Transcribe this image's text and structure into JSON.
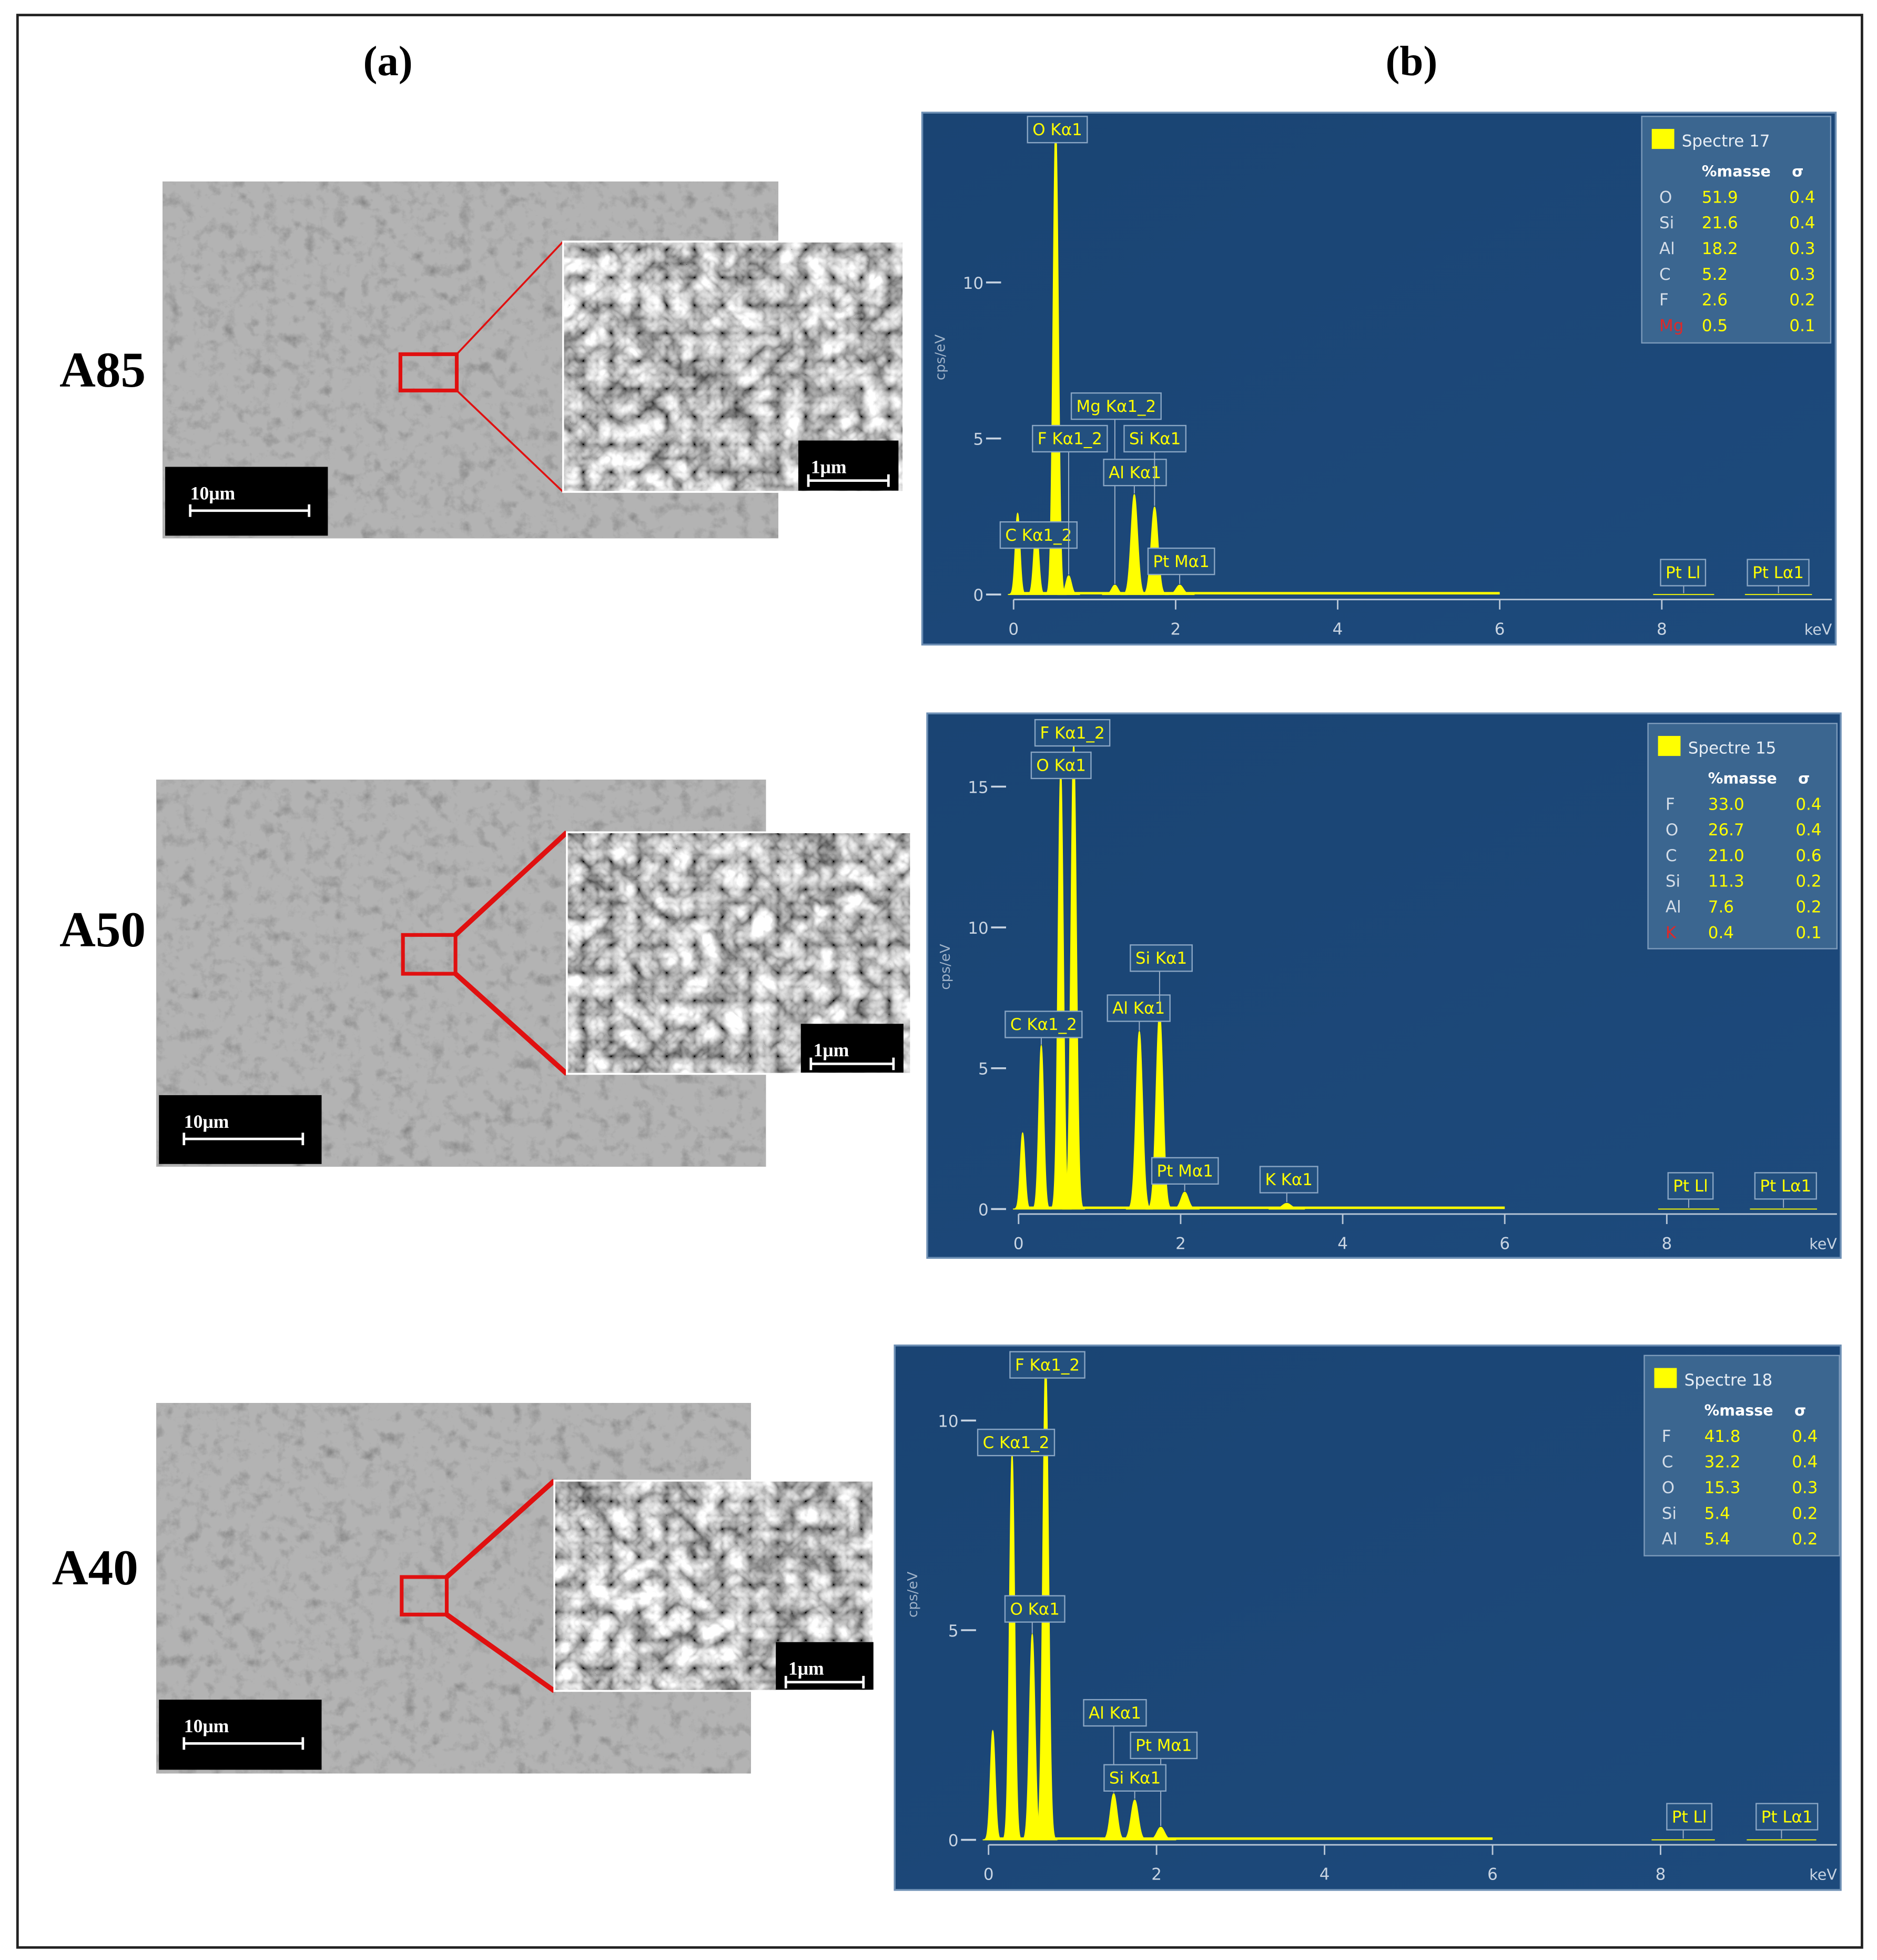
{
  "figure": {
    "panel_labels": [
      "(a)",
      "(b)"
    ],
    "rows": [
      {
        "sample": "A85",
        "scale_bar": "10μm",
        "inset_scale_bar": "1μm",
        "spectrum": {
          "type": "spectrum",
          "ylabel": "cps/eV",
          "xlabel": "keV",
          "color": "#ffff00",
          "xlim": [
            0,
            10.1
          ],
          "xticks": [
            0,
            2,
            4,
            6,
            8
          ],
          "ylim": [
            0,
            15.2
          ],
          "yticks": [
            0,
            5,
            10
          ],
          "peaks": {
            "labels": [
              null,
              "C Kα1_2",
              "O Kα1",
              "F Kα1_2",
              "Mg Kα1_2",
              "Al Kα1",
              "Si Kα1",
              "Pt Mα1",
              "Pt Ll",
              "Pt Lα1"
            ],
            "x": [
              0.05,
              0.28,
              0.52,
              0.68,
              1.25,
              1.49,
              1.74,
              2.05,
              8.27,
              9.44
            ],
            "heights": [
              2.6,
              2.2,
              15,
              0.6,
              0.3,
              3.2,
              2.8,
              0.3,
              0,
              0
            ]
          },
          "legend": {
            "title": "Spectre 17",
            "header": [
              "%masse",
              "σ"
            ],
            "highlight_row": 5,
            "highlight_color": "#e02828",
            "rows": [
              [
                "O",
                "51.9",
                "0.4"
              ],
              [
                "Si",
                "21.6",
                "0.4"
              ],
              [
                "Al",
                "18.2",
                "0.3"
              ],
              [
                "C",
                "5.2",
                "0.3"
              ],
              [
                "F",
                "2.6",
                "0.2"
              ],
              [
                "Mg",
                "0.5",
                "0.1"
              ]
            ]
          }
        }
      },
      {
        "sample": "A50",
        "scale_bar": "10μm",
        "inset_scale_bar": "1μm",
        "spectrum": {
          "type": "spectrum",
          "ylabel": "cps/eV",
          "xlabel": "keV",
          "color": "#ffff00",
          "xlim": [
            0,
            10.1
          ],
          "xticks": [
            0,
            2,
            4,
            6,
            8
          ],
          "ylim": [
            0,
            17.2
          ],
          "yticks": [
            0,
            5,
            10,
            15
          ],
          "peaks": {
            "labels": [
              null,
              "C Kα1_2",
              "O Kα1",
              "F Kα1_2",
              "Al Kα1",
              "Si Kα1",
              "Pt Mα1",
              "K Kα1",
              "Pt Ll",
              "Pt Lα1"
            ],
            "x": [
              0.05,
              0.28,
              0.52,
              0.68,
              1.49,
              1.74,
              2.05,
              3.31,
              8.27,
              9.44
            ],
            "heights": [
              2.7,
              5.8,
              15.6,
              16.5,
              6.3,
              7.0,
              0.6,
              0.2,
              0,
              0
            ]
          },
          "legend": {
            "title": "Spectre 15",
            "header": [
              "%masse",
              "σ"
            ],
            "highlight_row": 5,
            "highlight_color": "#e02828",
            "rows": [
              [
                "F",
                "33.0",
                "0.4"
              ],
              [
                "O",
                "26.7",
                "0.4"
              ],
              [
                "C",
                "21.0",
                "0.6"
              ],
              [
                "Si",
                "11.3",
                "0.2"
              ],
              [
                "Al",
                "7.6",
                "0.2"
              ],
              [
                "K",
                "0.4",
                "0.1"
              ]
            ]
          }
        }
      },
      {
        "sample": "A40",
        "scale_bar": "10μm",
        "inset_scale_bar": "1μm",
        "spectrum": {
          "type": "spectrum",
          "ylabel": "cps/eV",
          "xlabel": "keV",
          "color": "#ffff00",
          "xlim": [
            0,
            10.1
          ],
          "xticks": [
            0,
            2,
            4,
            6,
            8
          ],
          "ylim": [
            0,
            11.7
          ],
          "yticks": [
            0,
            5,
            10
          ],
          "peaks": {
            "labels": [
              null,
              "C Kα1_2",
              "O Kα1",
              "F Kα1_2",
              "Al Kα1",
              "Pt Mα1",
              "Si Kα1",
              "Pt Ll",
              "Pt Lα1"
            ],
            "x": [
              0.05,
              0.28,
              0.52,
              0.68,
              1.49,
              2.05,
              1.74,
              8.27,
              9.44
            ],
            "heights": [
              2.6,
              9.2,
              4.9,
              11.4,
              1.1,
              0.3,
              0.95,
              0,
              0
            ]
          },
          "legend": {
            "title": "Spectre 18",
            "header": [
              "%masse",
              "σ"
            ],
            "rows": [
              [
                "F",
                "41.8",
                "0.4"
              ],
              [
                "C",
                "32.2",
                "0.4"
              ],
              [
                "O",
                "15.3",
                "0.3"
              ],
              [
                "Si",
                "5.4",
                "0.2"
              ],
              [
                "Al",
                "5.4",
                "0.2"
              ]
            ]
          }
        }
      }
    ]
  }
}
